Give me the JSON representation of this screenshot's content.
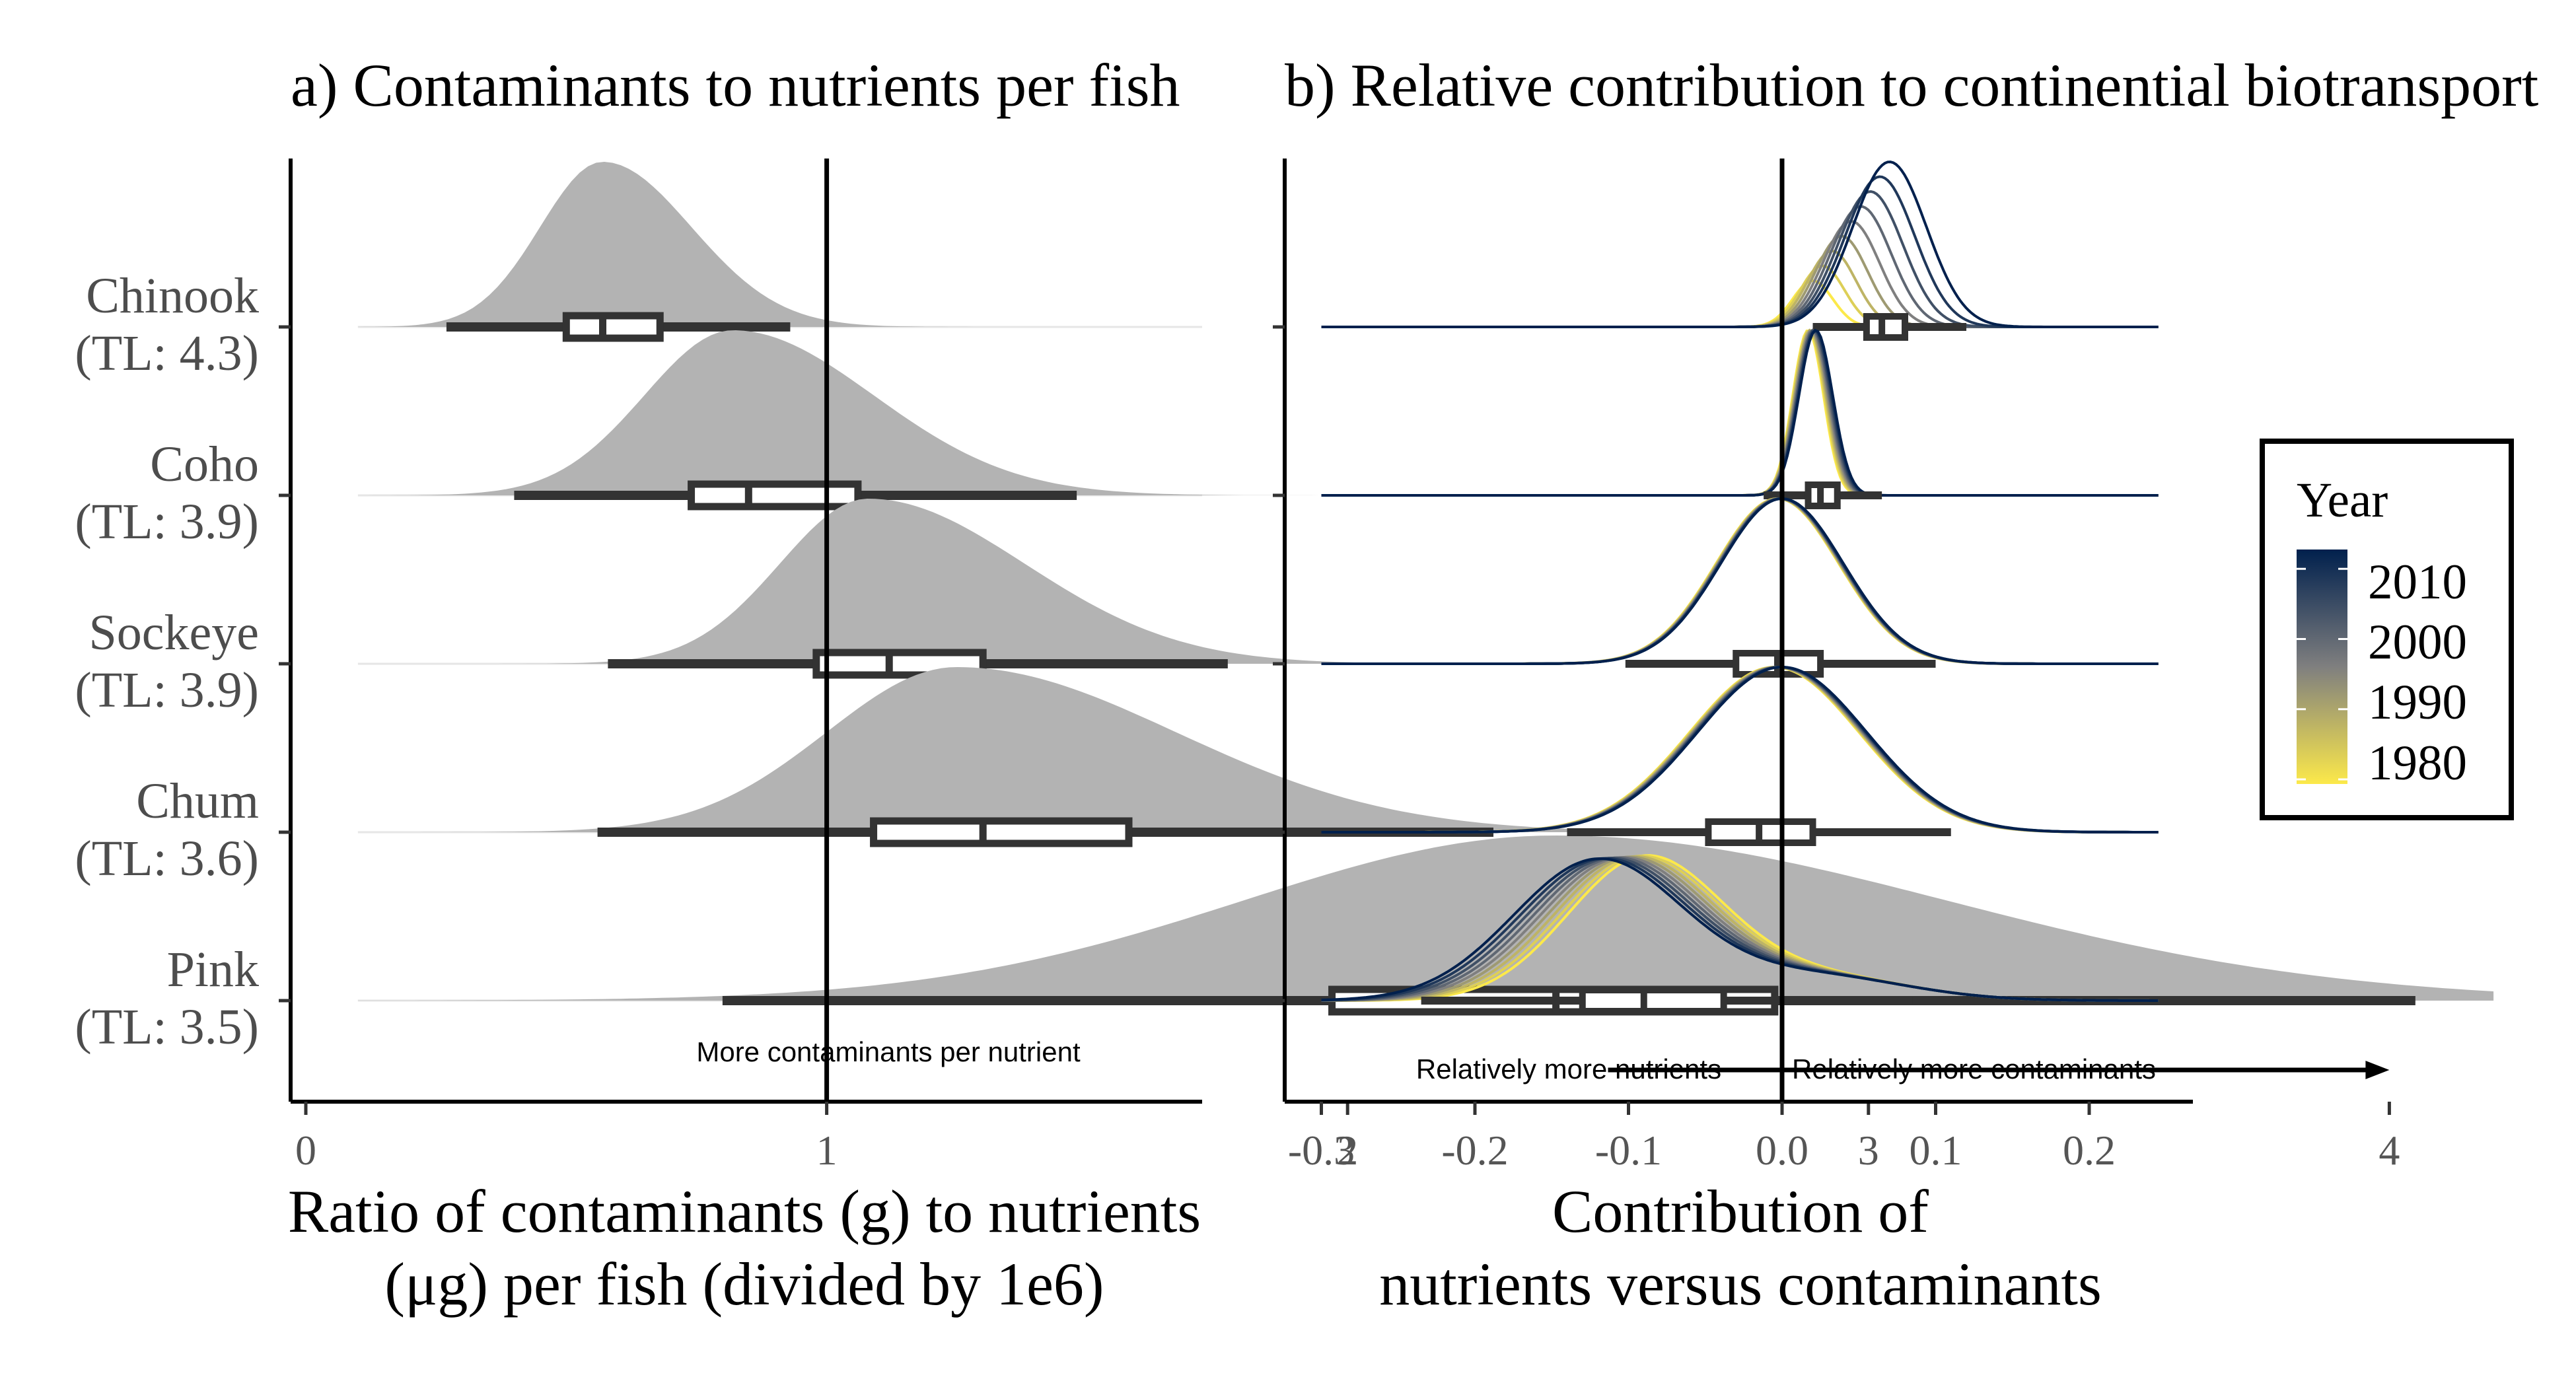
{
  "chart_data": [
    {
      "type": "ridgeline",
      "panel": "a",
      "title": "a) Contaminants to nutrients per fish",
      "xlabel_lines": [
        "Ratio of contaminants (g) to nutrients",
        "(μg) per fish (divided by 1e6)"
      ],
      "xlim": [
        -0.1,
        4.2
      ],
      "x_ticks": [
        0,
        1,
        2,
        3,
        4
      ],
      "x_tick_labels": [
        "0",
        "1",
        "2",
        "3",
        "4"
      ],
      "reference_line_x": 1,
      "annotation": "More contaminants per nutrient",
      "arrow_from_x": 2.5,
      "arrow_to_x": 4.0,
      "fill_color": "#b3b3b3",
      "box_color": "#333333",
      "species": [
        {
          "name": "Chinook",
          "tl": "(TL: 4.3)",
          "mode": 0.57,
          "sd_left": 0.12,
          "sd_right": 0.17,
          "min": 0.27,
          "q1": 0.5,
          "median": 0.57,
          "q3": 0.68,
          "max": 0.93
        },
        {
          "name": "Coho",
          "tl": "(TL: 3.9)",
          "mode": 0.82,
          "sd_left": 0.17,
          "sd_right": 0.27,
          "min": 0.4,
          "q1": 0.74,
          "median": 0.85,
          "q3": 1.06,
          "max": 1.48
        },
        {
          "name": "Sockeye",
          "tl": "(TL: 3.9)",
          "mode": 1.08,
          "sd_left": 0.17,
          "sd_right": 0.3,
          "min": 0.58,
          "q1": 0.98,
          "median": 1.12,
          "q3": 1.3,
          "max": 1.77
        },
        {
          "name": "Chum",
          "tl": "(TL: 3.6)",
          "mode": 1.25,
          "sd_left": 0.25,
          "sd_right": 0.42,
          "min": 0.56,
          "q1": 1.09,
          "median": 1.3,
          "q3": 1.58,
          "max": 2.28
        },
        {
          "name": "Pink",
          "tl": "(TL: 3.5)",
          "mode": 2.4,
          "sd_left": 0.6,
          "sd_right": 0.75,
          "min": 0.8,
          "q1": 1.97,
          "median": 2.4,
          "q3": 2.82,
          "max": 4.05
        }
      ]
    },
    {
      "type": "ridgeline",
      "panel": "b",
      "title": "b) Relative contribution to continential biotransport",
      "xlabel_lines": [
        "Contribution of",
        "nutrients versus contaminants"
      ],
      "xlim": [
        -0.3,
        0.25
      ],
      "x_ticks": [
        -0.3,
        -0.2,
        -0.1,
        0.0,
        0.1,
        0.2
      ],
      "x_tick_labels": [
        "-0.3",
        "-0.2",
        "-0.1",
        "0.0",
        "0.1",
        "0.2"
      ],
      "reference_line_x": 0,
      "annotation_left": "Relatively more nutrients",
      "annotation_right": "Relatively more contaminants",
      "box_color": "#333333",
      "years": [
        1980,
        1984,
        1988,
        1992,
        1996,
        2000,
        2004,
        2008,
        2012
      ],
      "species": [
        {
          "name": "Chinook",
          "mode_1980": 0.02,
          "mode_2012": 0.07,
          "sd_1980": 0.013,
          "sd_2012": 0.024,
          "peak_1980": 0.28,
          "peak_2012": 1.0,
          "min": 0.02,
          "q1": 0.055,
          "median": 0.065,
          "q3": 0.08,
          "max": 0.12
        },
        {
          "name": "Coho",
          "mode_1980": 0.017,
          "mode_2012": 0.022,
          "sd_1980": 0.01,
          "sd_2012": 0.011,
          "peak_1980": 1.0,
          "peak_2012": 1.0,
          "min": -0.012,
          "q1": 0.017,
          "median": 0.025,
          "q3": 0.036,
          "max": 0.065
        },
        {
          "name": "Sockeye",
          "mode_1980": -0.003,
          "mode_2012": 0.0,
          "sd_1980": 0.04,
          "sd_2012": 0.04,
          "peak_1980": 1.0,
          "peak_2012": 1.0,
          "min": -0.102,
          "q1": -0.03,
          "median": -0.003,
          "q3": 0.025,
          "max": 0.1
        },
        {
          "name": "Chum",
          "mode_1980": -0.005,
          "mode_2012": 0.0,
          "sd_1980": 0.055,
          "sd_2012": 0.055,
          "peak_1980": 1.0,
          "peak_2012": 1.0,
          "min": -0.14,
          "q1": -0.048,
          "median": -0.015,
          "q3": 0.02,
          "max": 0.11
        },
        {
          "name": "Pink",
          "mode_1980": -0.09,
          "mode_2012": -0.12,
          "sd_1980": 0.05,
          "sd_2012": 0.055,
          "peak_1980": 1.0,
          "peak_2012": 1.0,
          "min": -0.235,
          "q1": -0.13,
          "median": -0.09,
          "q3": -0.038,
          "max": 0.085
        }
      ]
    }
  ],
  "legend": {
    "title": "Year",
    "labels": [
      "2010",
      "2000",
      "1990",
      "1980"
    ],
    "label_values": [
      2010,
      2000,
      1990,
      1980
    ],
    "range": [
      1980,
      2012
    ],
    "color_low": "#FCE94A",
    "color_mid": "#7F7F7F",
    "color_high": "#00204D"
  }
}
